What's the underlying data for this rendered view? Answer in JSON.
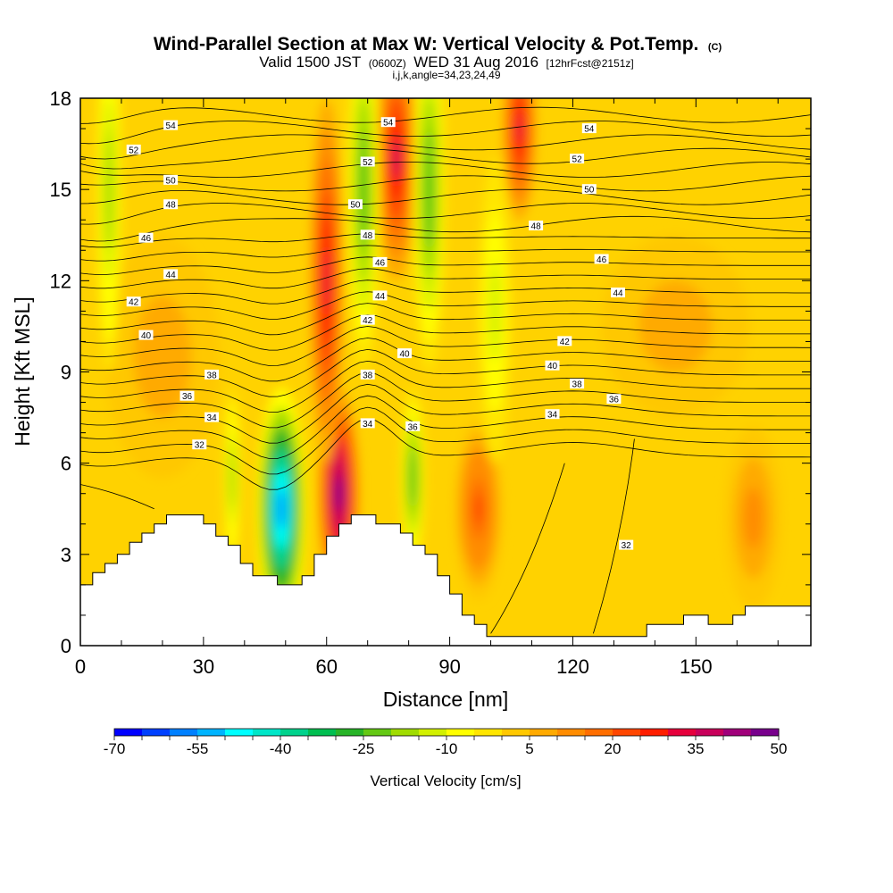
{
  "title": {
    "main": "Wind-Parallel Section at Max W: Vertical Velocity & Pot.Temp.",
    "main_unit": "(C)",
    "line2_a": "Valid 1500 JST",
    "line2_b": "(0600Z)",
    "line2_c": "WED 31 Aug 2016",
    "line2_d": "[12hrFcst@2151z]",
    "line3": "i,j,k,angle=34,23,24,49"
  },
  "chart_data": {
    "type": "heatmap",
    "xlabel": "Distance [nm]",
    "ylabel": "Height [Kft MSL]",
    "xlim": [
      0,
      178
    ],
    "ylim": [
      0,
      18
    ],
    "x_ticks": [
      0,
      30,
      60,
      90,
      120,
      150
    ],
    "y_ticks": [
      0,
      3,
      6,
      9,
      12,
      15,
      18
    ],
    "x_tick_labels": [
      "0",
      "30",
      "60",
      "90",
      "120",
      "150"
    ],
    "y_tick_labels": [
      "0",
      "3",
      "6",
      "9",
      "12",
      "15",
      "18"
    ],
    "colorbar": {
      "label": "Vertical Velocity [cm/s]",
      "min": -70,
      "max": 50,
      "step": 5,
      "tick_values": [
        -70,
        -55,
        -40,
        -25,
        -10,
        5,
        20,
        35,
        50
      ],
      "tick_labels": [
        "-70",
        "-55",
        "-40",
        "-25",
        "-10",
        "5",
        "20",
        "35",
        "50"
      ],
      "colors": [
        "#0000ff",
        "#0040ff",
        "#0080ff",
        "#00b4ff",
        "#00ffff",
        "#00e6c8",
        "#00d28c",
        "#00be50",
        "#28b428",
        "#64c814",
        "#a0dc00",
        "#d2f000",
        "#ffff00",
        "#ffe600",
        "#ffc800",
        "#ffaa00",
        "#ff8c00",
        "#ff6e00",
        "#ff4600",
        "#ff1e00",
        "#e6003c",
        "#c8005a",
        "#a0007a",
        "#78008c"
      ]
    },
    "terrain_kft": [
      [
        0,
        2.0
      ],
      [
        3,
        2.0
      ],
      [
        3,
        2.4
      ],
      [
        6,
        2.4
      ],
      [
        6,
        2.7
      ],
      [
        9,
        2.7
      ],
      [
        9,
        3.0
      ],
      [
        12,
        3.0
      ],
      [
        12,
        3.4
      ],
      [
        15,
        3.4
      ],
      [
        15,
        3.7
      ],
      [
        18,
        3.7
      ],
      [
        18,
        4.0
      ],
      [
        21,
        4.0
      ],
      [
        21,
        4.3
      ],
      [
        30,
        4.3
      ],
      [
        30,
        4.0
      ],
      [
        33,
        4.0
      ],
      [
        33,
        3.6
      ],
      [
        36,
        3.6
      ],
      [
        36,
        3.3
      ],
      [
        39,
        3.3
      ],
      [
        39,
        2.7
      ],
      [
        42,
        2.7
      ],
      [
        42,
        2.3
      ],
      [
        48,
        2.3
      ],
      [
        48,
        2.0
      ],
      [
        54,
        2.0
      ],
      [
        54,
        2.3
      ],
      [
        57,
        2.3
      ],
      [
        57,
        3.0
      ],
      [
        60,
        3.0
      ],
      [
        60,
        3.6
      ],
      [
        63,
        3.6
      ],
      [
        63,
        4.0
      ],
      [
        66,
        4.0
      ],
      [
        66,
        4.3
      ],
      [
        72,
        4.3
      ],
      [
        72,
        4.0
      ],
      [
        78,
        4.0
      ],
      [
        78,
        3.7
      ],
      [
        81,
        3.7
      ],
      [
        81,
        3.3
      ],
      [
        84,
        3.3
      ],
      [
        84,
        3.0
      ],
      [
        87,
        3.0
      ],
      [
        87,
        2.3
      ],
      [
        90,
        2.3
      ],
      [
        90,
        1.7
      ],
      [
        93,
        1.7
      ],
      [
        93,
        1.0
      ],
      [
        96,
        1.0
      ],
      [
        96,
        0.7
      ],
      [
        99,
        0.7
      ],
      [
        99,
        0.3
      ],
      [
        138,
        0.3
      ],
      [
        138,
        0.7
      ],
      [
        147,
        0.7
      ],
      [
        147,
        1.0
      ],
      [
        153,
        1.0
      ],
      [
        153,
        0.7
      ],
      [
        159,
        0.7
      ],
      [
        159,
        1.0
      ],
      [
        162,
        1.0
      ],
      [
        162,
        1.3
      ],
      [
        178,
        1.3
      ]
    ],
    "isentropes_labels": [
      {
        "value": "54",
        "x": 22,
        "y": 17.1
      },
      {
        "value": "54",
        "x": 75,
        "y": 17.2
      },
      {
        "value": "54",
        "x": 124,
        "y": 17.0
      },
      {
        "value": "52",
        "x": 13,
        "y": 16.3
      },
      {
        "value": "52",
        "x": 70,
        "y": 15.9
      },
      {
        "value": "52",
        "x": 121,
        "y": 16.0
      },
      {
        "value": "50",
        "x": 22,
        "y": 15.3
      },
      {
        "value": "50",
        "x": 67,
        "y": 14.5
      },
      {
        "value": "50",
        "x": 124,
        "y": 15.0
      },
      {
        "value": "48",
        "x": 22,
        "y": 14.5
      },
      {
        "value": "48",
        "x": 70,
        "y": 13.5
      },
      {
        "value": "48",
        "x": 111,
        "y": 13.8
      },
      {
        "value": "46",
        "x": 16,
        "y": 13.4
      },
      {
        "value": "46",
        "x": 73,
        "y": 12.6
      },
      {
        "value": "46",
        "x": 127,
        "y": 12.7
      },
      {
        "value": "44",
        "x": 22,
        "y": 12.2
      },
      {
        "value": "44",
        "x": 73,
        "y": 11.5
      },
      {
        "value": "44",
        "x": 131,
        "y": 11.6
      },
      {
        "value": "42",
        "x": 13,
        "y": 11.3
      },
      {
        "value": "42",
        "x": 70,
        "y": 10.7
      },
      {
        "value": "42",
        "x": 118,
        "y": 10.0
      },
      {
        "value": "40",
        "x": 16,
        "y": 10.2
      },
      {
        "value": "40",
        "x": 79,
        "y": 9.6
      },
      {
        "value": "40",
        "x": 115,
        "y": 9.2
      },
      {
        "value": "38",
        "x": 32,
        "y": 8.9
      },
      {
        "value": "38",
        "x": 70,
        "y": 8.9
      },
      {
        "value": "38",
        "x": 121,
        "y": 8.6
      },
      {
        "value": "36",
        "x": 26,
        "y": 8.2
      },
      {
        "value": "36",
        "x": 81,
        "y": 7.2
      },
      {
        "value": "36",
        "x": 130,
        "y": 8.1
      },
      {
        "value": "34",
        "x": 32,
        "y": 7.5
      },
      {
        "value": "34",
        "x": 70,
        "y": 7.3
      },
      {
        "value": "34",
        "x": 115,
        "y": 7.6
      },
      {
        "value": "32",
        "x": 29,
        "y": 6.6
      },
      {
        "value": "32",
        "x": 133,
        "y": 3.3
      }
    ],
    "velocity_features": [
      {
        "kind": "updraft",
        "x": 63,
        "y": 5.0,
        "wx": 5,
        "wy": 3.5,
        "value": 45
      },
      {
        "kind": "updraft",
        "x": 60,
        "y": 12.0,
        "wx": 4,
        "wy": 6,
        "value": 30
      },
      {
        "kind": "updraft",
        "x": 77,
        "y": 16.0,
        "wx": 5,
        "wy": 4,
        "value": 35
      },
      {
        "kind": "updraft",
        "x": 107,
        "y": 17.0,
        "wx": 4,
        "wy": 3,
        "value": 30
      },
      {
        "kind": "updraft",
        "x": 97,
        "y": 4.5,
        "wx": 6,
        "wy": 3,
        "value": 20
      },
      {
        "kind": "updraft",
        "x": 164,
        "y": 4.2,
        "wx": 7,
        "wy": 3,
        "value": 12
      },
      {
        "kind": "updraft",
        "x": 20,
        "y": 9.5,
        "wx": 14,
        "wy": 4,
        "value": 8
      },
      {
        "kind": "updraft",
        "x": 145,
        "y": 10.5,
        "wx": 18,
        "wy": 3,
        "value": 8
      },
      {
        "kind": "downdraft",
        "x": 49,
        "y": 4.5,
        "wx": 6,
        "wy": 4,
        "value": -60
      },
      {
        "kind": "downdraft",
        "x": 69,
        "y": 15.0,
        "wx": 4,
        "wy": 6,
        "value": -25
      },
      {
        "kind": "downdraft",
        "x": 81,
        "y": 5.5,
        "wx": 3,
        "wy": 3,
        "value": -25
      },
      {
        "kind": "downdraft",
        "x": 85,
        "y": 15.0,
        "wx": 4,
        "wy": 6,
        "value": -25
      },
      {
        "kind": "downdraft",
        "x": 7,
        "y": 15.0,
        "wx": 3,
        "wy": 6,
        "value": -20
      },
      {
        "kind": "downdraft",
        "x": 37,
        "y": 5.5,
        "wx": 2,
        "wy": 3,
        "value": -20
      },
      {
        "kind": "downdraft",
        "x": 101,
        "y": 11.0,
        "wx": 4,
        "wy": 5,
        "value": -15
      }
    ]
  }
}
